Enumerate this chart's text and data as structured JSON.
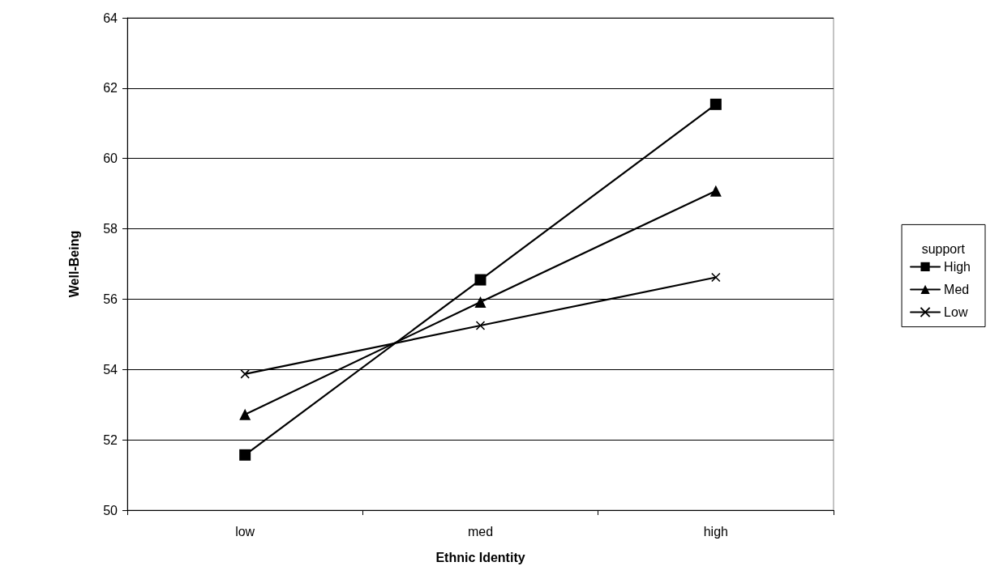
{
  "chart_data": {
    "type": "line",
    "xlabel": "Ethnic Identity",
    "ylabel": "Well-Being",
    "legend_title": "support",
    "categories": [
      "low",
      "med",
      "high"
    ],
    "series": [
      {
        "name": "High",
        "color": "#000000",
        "marker": "square",
        "values": [
          51.57,
          56.55,
          61.54
        ]
      },
      {
        "name": "Med",
        "color": "#000000",
        "marker": "triangle",
        "values": [
          52.72,
          55.92,
          59.08
        ]
      },
      {
        "name": "Low",
        "color": "#000000",
        "marker": "cross",
        "values": [
          53.87,
          55.25,
          56.62
        ]
      }
    ],
    "ylim": [
      50,
      64
    ],
    "yticks": [
      50,
      52,
      54,
      56,
      58,
      60,
      62,
      64
    ],
    "grid": "y",
    "legend": "right",
    "line_style": "solid"
  }
}
